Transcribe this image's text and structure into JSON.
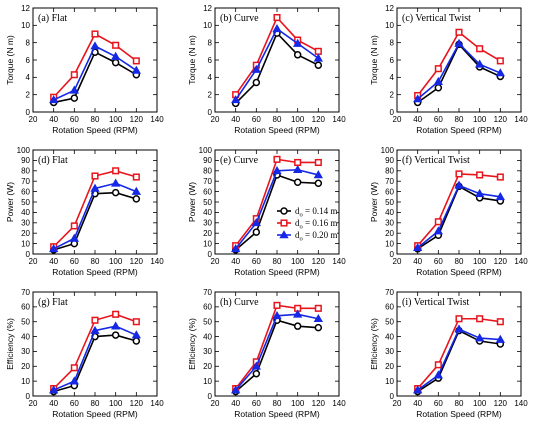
{
  "colors": {
    "s1": "#000000",
    "s2": "#e8141c",
    "s3": "#1428e6"
  },
  "legend": {
    "placement": "inside panel (e), bottom-right",
    "entries": [
      {
        "prefix": "d",
        "sub": "o",
        "rest": "= 0.14 m",
        "color": "#000000",
        "marker": "circle"
      },
      {
        "prefix": "d",
        "sub": "o",
        "rest": "= 0.16 m",
        "color": "#e8141c",
        "marker": "square"
      },
      {
        "prefix": "d",
        "sub": "o",
        "rest": "= 0.20 m",
        "color": "#1428e6",
        "marker": "triangle"
      }
    ]
  },
  "chart_data": [
    {
      "panel": "(a) Flat",
      "type": "line",
      "xlabel": "Rotation Speed (RPM)",
      "ylabel": "Torque (N m)",
      "xlim": [
        20,
        140
      ],
      "ylim": [
        0,
        12
      ],
      "xticks": [
        20,
        40,
        60,
        80,
        100,
        120,
        140
      ],
      "yticks": [
        0,
        2,
        4,
        6,
        8,
        10,
        12
      ],
      "x": [
        40,
        60,
        80,
        100,
        120
      ],
      "series": [
        {
          "values": [
            1.1,
            1.6,
            6.9,
            5.7,
            4.3
          ]
        },
        {
          "values": [
            1.7,
            4.3,
            9.0,
            7.7,
            5.9
          ]
        },
        {
          "values": [
            1.4,
            2.5,
            7.6,
            6.4,
            4.8
          ]
        }
      ]
    },
    {
      "panel": "(d) Flat",
      "type": "line",
      "xlabel": "Rotation Speed (RPM)",
      "ylabel": "Power (W)",
      "xlim": [
        20,
        140
      ],
      "ylim": [
        0,
        100
      ],
      "xticks": [
        20,
        40,
        60,
        80,
        100,
        120,
        140
      ],
      "yticks": [
        0,
        10,
        20,
        30,
        40,
        50,
        60,
        70,
        80,
        90,
        100
      ],
      "x": [
        40,
        60,
        80,
        100,
        120
      ],
      "series": [
        {
          "values": [
            4,
            10,
            58,
            59,
            53
          ]
        },
        {
          "values": [
            7,
            27,
            75,
            80,
            74
          ]
        },
        {
          "values": [
            5,
            15,
            63,
            68,
            60
          ]
        }
      ]
    },
    {
      "panel": "(g) Flat",
      "type": "line",
      "xlabel": "Rotation Speed (RPM)",
      "ylabel": "Efficiency (%)",
      "xlim": [
        20,
        140
      ],
      "ylim": [
        0,
        70
      ],
      "xticks": [
        20,
        40,
        60,
        80,
        100,
        120,
        140
      ],
      "yticks": [
        0,
        10,
        20,
        30,
        40,
        50,
        60,
        70
      ],
      "x": [
        40,
        60,
        80,
        100,
        120
      ],
      "series": [
        {
          "values": [
            3,
            7,
            40,
            41,
            37
          ]
        },
        {
          "values": [
            5,
            19,
            51,
            55,
            50
          ]
        },
        {
          "values": [
            4,
            10,
            44,
            47,
            41
          ]
        }
      ]
    },
    {
      "panel": "(b) Curve",
      "type": "line",
      "xlabel": "Rotation Speed (RPM)",
      "ylabel": "Torque (N m)",
      "xlim": [
        20,
        140
      ],
      "ylim": [
        0,
        12
      ],
      "xticks": [
        20,
        40,
        60,
        80,
        100,
        120,
        140
      ],
      "yticks": [
        0,
        2,
        4,
        6,
        8,
        10,
        12
      ],
      "x": [
        40,
        60,
        80,
        100,
        120
      ],
      "series": [
        {
          "values": [
            1.0,
            3.4,
            9.1,
            6.6,
            5.4
          ]
        },
        {
          "values": [
            2.0,
            5.4,
            10.9,
            8.3,
            7.0
          ]
        },
        {
          "values": [
            1.4,
            4.9,
            9.6,
            7.9,
            6.2
          ]
        }
      ]
    },
    {
      "panel": "(e) Curve",
      "type": "line",
      "xlabel": "Rotation Speed (RPM)",
      "ylabel": "Power (W)",
      "xlim": [
        20,
        140
      ],
      "ylim": [
        0,
        100
      ],
      "xticks": [
        20,
        40,
        60,
        80,
        100,
        120,
        140
      ],
      "yticks": [
        0,
        10,
        20,
        30,
        40,
        50,
        60,
        70,
        80,
        90,
        100
      ],
      "x": [
        40,
        60,
        80,
        100,
        120
      ],
      "series": [
        {
          "values": [
            4,
            21,
            76,
            69,
            68
          ]
        },
        {
          "values": [
            8,
            34,
            91,
            88,
            88
          ]
        },
        {
          "values": [
            5,
            30,
            80,
            81,
            76
          ]
        }
      ]
    },
    {
      "panel": "(h) Curve",
      "type": "line",
      "xlabel": "Rotation Speed (RPM)",
      "ylabel": "Efficiency (%)",
      "xlim": [
        20,
        140
      ],
      "ylim": [
        0,
        70
      ],
      "xticks": [
        20,
        40,
        60,
        80,
        100,
        120,
        140
      ],
      "yticks": [
        0,
        10,
        20,
        30,
        40,
        50,
        60,
        70
      ],
      "x": [
        40,
        60,
        80,
        100,
        120
      ],
      "series": [
        {
          "values": [
            3,
            15,
            51,
            47,
            46
          ]
        },
        {
          "values": [
            5,
            23,
            61,
            59,
            59
          ]
        },
        {
          "values": [
            4,
            20,
            54,
            55,
            52
          ]
        }
      ]
    },
    {
      "panel": "(c) Vertical Twist",
      "type": "line",
      "xlabel": "Rotation Speed (RPM)",
      "ylabel": "Torque (N m)",
      "xlim": [
        20,
        140
      ],
      "ylim": [
        0,
        12
      ],
      "xticks": [
        20,
        40,
        60,
        80,
        100,
        120,
        140
      ],
      "yticks": [
        0,
        2,
        4,
        6,
        8,
        10,
        12
      ],
      "x": [
        40,
        60,
        80,
        100,
        120
      ],
      "series": [
        {
          "values": [
            1.1,
            2.8,
            7.8,
            5.2,
            4.1
          ]
        },
        {
          "values": [
            1.9,
            5.0,
            9.2,
            7.3,
            5.9
          ]
        },
        {
          "values": [
            1.5,
            3.5,
            7.9,
            5.5,
            4.5
          ]
        }
      ]
    },
    {
      "panel": "(f) Vertical Twist",
      "type": "line",
      "xlabel": "Rotation Speed (RPM)",
      "ylabel": "Power (W)",
      "xlim": [
        20,
        140
      ],
      "ylim": [
        0,
        100
      ],
      "xticks": [
        20,
        40,
        60,
        80,
        100,
        120,
        140
      ],
      "yticks": [
        0,
        10,
        20,
        30,
        40,
        50,
        60,
        70,
        80,
        90,
        100
      ],
      "x": [
        40,
        60,
        80,
        100,
        120
      ],
      "series": [
        {
          "values": [
            5,
            18,
            65,
            54,
            51
          ]
        },
        {
          "values": [
            8,
            31,
            77,
            76,
            74
          ]
        },
        {
          "values": [
            6,
            22,
            66,
            58,
            55
          ]
        }
      ]
    },
    {
      "panel": "(i) Vertical Twist",
      "type": "line",
      "xlabel": "Rotation Speed (RPM)",
      "ylabel": "Efficiency (%)",
      "xlim": [
        20,
        140
      ],
      "ylim": [
        0,
        70
      ],
      "xticks": [
        20,
        40,
        60,
        80,
        100,
        120,
        140
      ],
      "yticks": [
        0,
        10,
        20,
        30,
        40,
        50,
        60,
        70
      ],
      "x": [
        40,
        60,
        80,
        100,
        120
      ],
      "series": [
        {
          "values": [
            3,
            12,
            44,
            37,
            35
          ]
        },
        {
          "values": [
            5,
            21,
            52,
            52,
            50
          ]
        },
        {
          "values": [
            4,
            14,
            45,
            39,
            38
          ]
        }
      ]
    }
  ]
}
